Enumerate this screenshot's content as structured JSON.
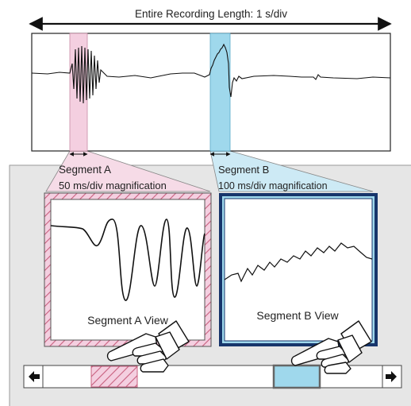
{
  "header": {
    "recording_length_label": "Entire Recording Length: 1 s/div"
  },
  "segments": {
    "a": {
      "name": "Segment A",
      "magnification": "50 ms/div magnification",
      "view_label": "Segment A View",
      "color": "#f4cfe0",
      "hatch_color": "#d77c96"
    },
    "b": {
      "name": "Segment B",
      "magnification": "100 ms/div magnification",
      "view_label": "Segment B View",
      "color": "#9fd8ec",
      "frame_color": "#17356b"
    }
  },
  "scrollbar": {
    "left_arrow_icon": "arrow-left-icon",
    "right_arrow_icon": "arrow-right-icon"
  },
  "colors": {
    "panel_background": "#e6e6e6",
    "waveform": "#111111"
  }
}
